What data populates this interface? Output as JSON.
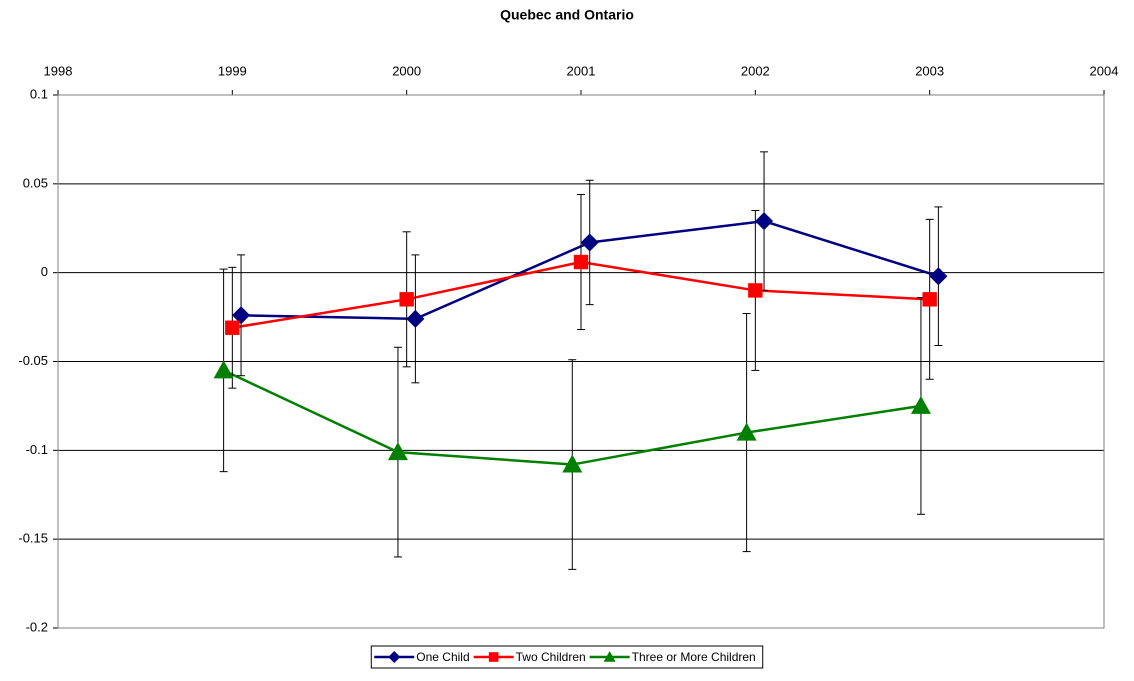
{
  "chart_data": {
    "type": "line",
    "title": "Quebec and Ontario",
    "series": [
      {
        "name": "One Child",
        "color": "#000080",
        "marker": "diamond",
        "x": [
          1999.05,
          2000.05,
          2001.05,
          2002.05,
          2003.05
        ],
        "values": [
          -0.024,
          -0.026,
          0.017,
          0.029,
          -0.002
        ],
        "errors": [
          0.034,
          0.036,
          0.035,
          0.039,
          0.039
        ]
      },
      {
        "name": "Two Children",
        "color": "#ff0000",
        "marker": "square",
        "x": [
          1999,
          2000,
          2001,
          2002,
          2003
        ],
        "values": [
          -0.031,
          -0.015,
          0.006,
          -0.01,
          -0.015
        ],
        "errors": [
          0.034,
          0.038,
          0.038,
          0.045,
          0.045
        ]
      },
      {
        "name": "Three or More Children",
        "color": "#008000",
        "marker": "triangle",
        "x": [
          1998.95,
          1999.95,
          2000.95,
          2001.95,
          2002.95
        ],
        "values": [
          -0.055,
          -0.101,
          -0.108,
          -0.09,
          -0.075
        ],
        "errors": [
          0.057,
          0.059,
          0.059,
          0.067,
          0.061
        ]
      }
    ],
    "xlim": [
      1998,
      2004
    ],
    "xticks": [
      1998,
      1999,
      2000,
      2001,
      2002,
      2003,
      2004
    ],
    "ylim": [
      -0.2,
      0.1
    ],
    "yticks": [
      -0.2,
      -0.15,
      -0.1,
      -0.05,
      0,
      0.05,
      0.1
    ],
    "grid": true,
    "legend": "bottom"
  }
}
